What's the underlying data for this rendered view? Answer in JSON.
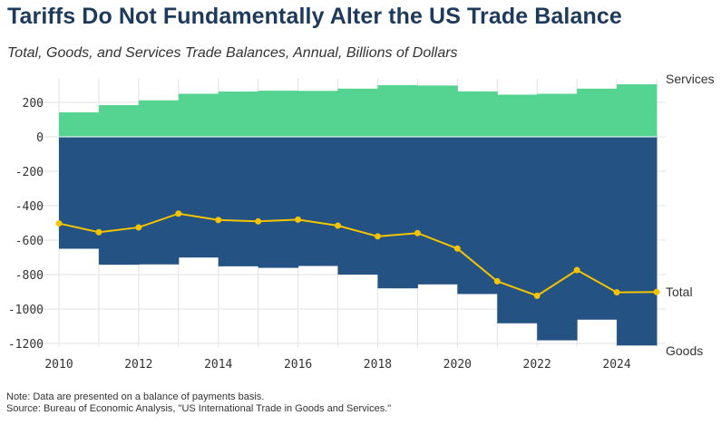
{
  "title": "Tariffs Do Not Fundamentally Alter the US Trade Balance",
  "subtitle": "Total, Goods, and Services Trade Balances, Annual, Billions of Dollars",
  "footer": {
    "note": "Note: Data are presented on a balance of payments basis.",
    "source": "Source: Bureau of Economic Analysis, \"US International Trade in Goods and Services.\""
  },
  "colors": {
    "services": "#54d490",
    "goods": "#245283",
    "total": "#f5c400",
    "grid": "#e2e2e2",
    "text": "#333333"
  },
  "chart_data": {
    "type": "area",
    "title": "Tariffs Do Not Fundamentally Alter the US Trade Balance",
    "subtitle": "Total, Goods, and Services Trade Balances, Annual, Billions of Dollars",
    "xlabel": "",
    "ylabel": "",
    "ylim": [
      -1220,
      340
    ],
    "xlim": [
      2010,
      2025
    ],
    "grid": true,
    "yticks": [
      200,
      0,
      -200,
      -400,
      -600,
      -800,
      -1000,
      -1200
    ],
    "ytick_labels": [
      "200",
      "0",
      "-200",
      "-400",
      "-600",
      "-800",
      "-1000",
      "-1200"
    ],
    "xticks": [
      2010,
      2012,
      2014,
      2016,
      2018,
      2020,
      2022,
      2024
    ],
    "xtick_labels": [
      "2010",
      "2012",
      "2014",
      "2016",
      "2018",
      "2020",
      "2022",
      "2024"
    ],
    "years": [
      2010,
      2011,
      2012,
      2013,
      2014,
      2015,
      2016,
      2017,
      2018,
      2019,
      2020,
      2021,
      2022,
      2023,
      2024
    ],
    "series": [
      {
        "name": "Services",
        "label": "Services",
        "style": "step-area",
        "values": [
          142,
          184,
          212,
          250,
          263,
          268,
          267,
          280,
          300,
          298,
          264,
          245,
          250,
          280,
          305
        ]
      },
      {
        "name": "Goods",
        "label": "Goods",
        "style": "step-area",
        "values": [
          -650,
          -743,
          -741,
          -701,
          -752,
          -761,
          -750,
          -800,
          -880,
          -857,
          -913,
          -1083,
          -1182,
          -1062,
          -1212
        ]
      },
      {
        "name": "Total",
        "label": "Total",
        "style": "line",
        "x": [
          2010,
          2011,
          2012,
          2013,
          2014,
          2015,
          2016,
          2017,
          2018,
          2019,
          2020,
          2021,
          2022,
          2023,
          2024,
          2025
        ],
        "values": [
          -503,
          -554,
          -526,
          -446,
          -483,
          -491,
          -481,
          -516,
          -578,
          -559,
          -649,
          -839,
          -923,
          -774,
          -903,
          -901
        ]
      }
    ]
  }
}
